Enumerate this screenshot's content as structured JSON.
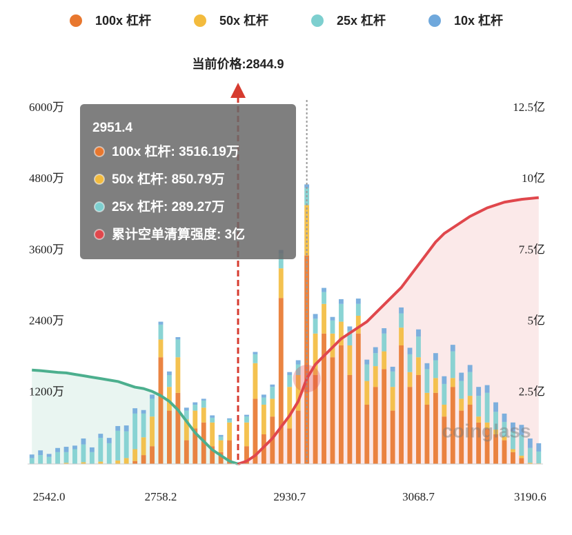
{
  "chart_data": {
    "type": "bar",
    "categories": [
      null,
      null,
      "2542.0",
      null,
      null,
      null,
      null,
      null,
      null,
      null,
      null,
      null,
      null,
      null,
      null,
      "2758.2",
      null,
      null,
      null,
      null,
      null,
      null,
      null,
      null,
      null,
      null,
      null,
      null,
      null,
      null,
      "2930.7",
      null,
      null,
      null,
      null,
      null,
      null,
      null,
      null,
      null,
      null,
      null,
      null,
      null,
      null,
      "3068.7",
      null,
      null,
      null,
      null,
      null,
      null,
      null,
      null,
      null,
      null,
      null,
      null,
      "3190.6",
      null
    ],
    "series": [
      {
        "name": "100x 杠杆",
        "color": "#e8772e",
        "values": [
          0,
          0,
          0,
          0,
          0,
          0,
          0,
          0,
          0,
          0,
          0,
          0,
          50,
          150,
          300,
          1800,
          900,
          1200,
          400,
          600,
          700,
          300,
          200,
          400,
          0,
          300,
          1100,
          500,
          800,
          2800,
          600,
          900,
          3516.19,
          1500,
          2200,
          1800,
          2000,
          1500,
          2200,
          1000,
          1300,
          1600,
          900,
          2000,
          1300,
          1500,
          1000,
          1200,
          800,
          1300,
          900,
          1000,
          700,
          600,
          500,
          400,
          200,
          100,
          0,
          0
        ]
      },
      {
        "name": "50x 杠杆",
        "color": "#f3bb3d",
        "values": [
          0,
          0,
          0,
          0,
          20,
          0,
          30,
          0,
          40,
          0,
          60,
          100,
          200,
          300,
          500,
          300,
          400,
          600,
          350,
          300,
          250,
          400,
          200,
          300,
          0,
          400,
          600,
          500,
          300,
          500,
          700,
          600,
          850.79,
          700,
          500,
          400,
          400,
          500,
          300,
          400,
          350,
          300,
          400,
          300,
          250,
          300,
          200,
          250,
          200,
          150,
          200,
          150,
          100,
          100,
          80,
          60,
          50,
          40,
          20,
          10
        ]
      },
      {
        "name": "25x 杠杆",
        "color": "#7dcfcf",
        "values": [
          100,
          150,
          120,
          200,
          180,
          250,
          300,
          200,
          400,
          350,
          500,
          450,
          600,
          400,
          300,
          250,
          200,
          300,
          150,
          100,
          120,
          80,
          60,
          50,
          20,
          100,
          150,
          120,
          200,
          250,
          200,
          180,
          289.27,
          250,
          200,
          220,
          300,
          250,
          200,
          280,
          220,
          300,
          260,
          240,
          300,
          350,
          400,
          300,
          350,
          450,
          300,
          400,
          350,
          500,
          300,
          250,
          300,
          350,
          250,
          200
        ]
      },
      {
        "name": "10x 杠杆",
        "color": "#6fa8dc",
        "values": [
          60,
          80,
          50,
          70,
          90,
          60,
          100,
          80,
          70,
          90,
          80,
          100,
          90,
          60,
          70,
          50,
          60,
          40,
          50,
          40,
          30,
          40,
          30,
          20,
          10,
          30,
          40,
          50,
          40,
          60,
          50,
          70,
          60,
          80,
          70,
          60,
          80,
          70,
          90,
          80,
          100,
          90,
          80,
          100,
          110,
          120,
          100,
          120,
          130,
          110,
          140,
          120,
          150,
          130,
          160,
          140,
          150,
          170,
          160,
          140
        ]
      }
    ],
    "lines": [
      {
        "color": "#4caf8e",
        "axis": "y2",
        "values": [
          3.3,
          3.28,
          3.25,
          3.22,
          3.2,
          3.15,
          3.1,
          3.05,
          3.0,
          2.95,
          2.9,
          2.8,
          2.7,
          2.65,
          2.55,
          2.4,
          2.2,
          1.9,
          1.5,
          1.1,
          0.8,
          0.5,
          0.3,
          0.1,
          0,
          null,
          null,
          null,
          null,
          null,
          null,
          null,
          null,
          null,
          null,
          null,
          null,
          null,
          null,
          null,
          null,
          null,
          null,
          null,
          null,
          null,
          null,
          null,
          null,
          null,
          null,
          null,
          null,
          null,
          null,
          null,
          null,
          null,
          null,
          null
        ]
      },
      {
        "color": "#e0474c",
        "axis": "y2",
        "values": [
          null,
          null,
          null,
          null,
          null,
          null,
          null,
          null,
          null,
          null,
          null,
          null,
          null,
          null,
          null,
          null,
          null,
          null,
          null,
          null,
          null,
          null,
          null,
          null,
          0,
          0.1,
          0.3,
          0.6,
          0.9,
          1.3,
          1.7,
          2.2,
          3.0,
          3.5,
          3.8,
          4.1,
          4.4,
          4.6,
          4.8,
          5.0,
          5.3,
          5.6,
          5.9,
          6.2,
          6.6,
          7.0,
          7.4,
          7.8,
          8.1,
          8.3,
          8.5,
          8.7,
          8.85,
          9.0,
          9.1,
          9.2,
          9.25,
          9.3,
          9.33,
          9.36
        ]
      }
    ],
    "ylim": [
      0,
      6000
    ],
    "yticks": [
      {
        "value": 1200,
        "label": "1200万"
      },
      {
        "value": 2400,
        "label": "2400万"
      },
      {
        "value": 3600,
        "label": "3600万"
      },
      {
        "value": 4800,
        "label": "4800万"
      },
      {
        "value": 6000,
        "label": "6000万"
      }
    ],
    "y2lim": [
      0,
      12.5
    ],
    "y2ticks": [
      {
        "value": 2.5,
        "label": "2.5亿"
      },
      {
        "value": 5,
        "label": "5亿"
      },
      {
        "value": 7.5,
        "label": "7.5亿"
      },
      {
        "value": 10,
        "label": "10亿"
      },
      {
        "value": 12.5,
        "label": "12.5亿"
      }
    ],
    "annotation": "当前价格:2844.9",
    "watermark": "coinglass",
    "tooltip": {
      "title": "2951.4",
      "items": [
        "100x 杠杆: 3516.19万",
        "50x 杠杆: 850.79万",
        "25x 杠杆: 289.27万",
        "累计空单清算强度: 3亿"
      ]
    }
  }
}
